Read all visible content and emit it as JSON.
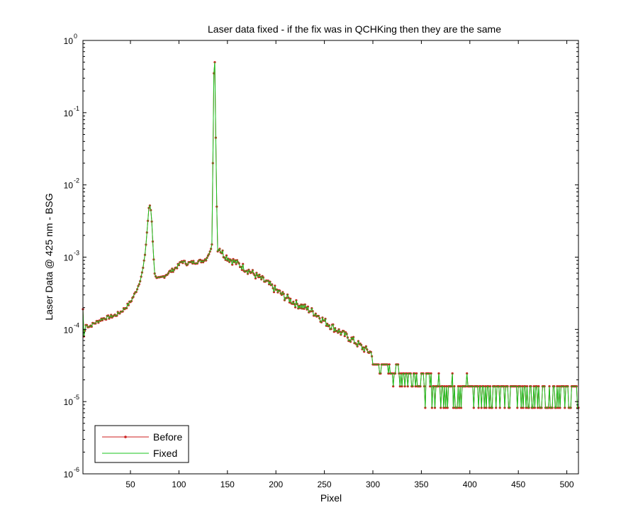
{
  "chart_data": {
    "type": "line",
    "title": "Laser data fixed - if the fix was in QCHKing then they are the same",
    "xlabel": "Pixel",
    "ylabel": "Laser Data @ 425 nm - BSG",
    "xlim": [
      1,
      512
    ],
    "ylim": [
      1e-06,
      1
    ],
    "yscale": "log",
    "grid": false,
    "legend_position": "bottom-left",
    "x_ticks": [
      50,
      100,
      150,
      200,
      250,
      300,
      350,
      400,
      450,
      500
    ],
    "x_tick_labels": [
      "50",
      "100",
      "150",
      "200",
      "250",
      "300",
      "350",
      "400",
      "450",
      "500"
    ],
    "y_ticks": [
      {
        "value": 1e-06,
        "base": "10",
        "exp": "-6"
      },
      {
        "value": 1e-05,
        "base": "10",
        "exp": "-5"
      },
      {
        "value": 0.0001,
        "base": "10",
        "exp": "-4"
      },
      {
        "value": 0.001,
        "base": "10",
        "exp": "-3"
      },
      {
        "value": 0.01,
        "base": "10",
        "exp": "-2"
      },
      {
        "value": 0.1,
        "base": "10",
        "exp": "-1"
      },
      {
        "value": 1,
        "base": "10",
        "exp": "0"
      }
    ],
    "series_style": [
      {
        "name": "Before",
        "color": "#cc1f1f",
        "marker": "dot",
        "line": true
      },
      {
        "name": "Fixed",
        "color": "#18c41e",
        "marker": "none",
        "line": true
      }
    ],
    "keypoints": {
      "x": [
        1,
        2,
        4,
        8,
        12,
        16,
        20,
        25,
        30,
        35,
        40,
        45,
        50,
        55,
        58,
        60,
        62,
        63,
        64,
        65,
        66,
        67,
        68,
        69,
        70,
        71,
        72,
        73,
        74,
        75,
        77,
        80,
        85,
        90,
        95,
        100,
        103,
        108,
        115,
        122,
        125,
        128,
        131,
        133,
        134,
        135,
        136,
        137,
        138,
        139,
        140,
        142,
        146,
        152,
        160,
        170,
        180,
        190,
        200,
        210,
        220,
        230,
        240,
        250,
        260,
        270,
        280,
        290,
        300,
        310,
        320,
        330,
        340,
        350,
        360,
        380,
        400,
        420,
        440,
        460,
        480,
        500,
        512
      ],
      "y": [
        0.00019,
        8e-05,
        0.000115,
        0.00011,
        0.00012,
        0.000128,
        0.000138,
        0.000145,
        0.00015,
        0.000158,
        0.000175,
        0.0002,
        0.00024,
        0.00032,
        0.0004,
        0.00049,
        0.0006,
        0.0007,
        0.00085,
        0.0011,
        0.0015,
        0.0022,
        0.0032,
        0.0046,
        0.0052,
        0.0045,
        0.0032,
        0.0017,
        0.0009,
        0.00062,
        0.0005,
        0.0005,
        0.00055,
        0.00062,
        0.00068,
        0.00078,
        0.00088,
        0.00082,
        0.00085,
        0.00088,
        0.0009,
        0.00095,
        0.0011,
        0.0013,
        0.0015,
        0.02,
        0.35,
        0.5,
        0.045,
        0.005,
        0.0012,
        0.0013,
        0.0011,
        0.00095,
        0.00082,
        0.00068,
        0.00055,
        0.00045,
        0.00035,
        0.00028,
        0.00023,
        0.0002,
        0.00017,
        0.00013,
        0.000105,
        8.5e-05,
        7e-05,
        5.5e-05,
        4.6e-05,
        3.7e-05,
        3e-05,
        2.5e-05,
        2.2e-05,
        2e-05,
        1.8e-05,
        1.6e-05,
        1.5e-05,
        1.4e-05,
        1.35e-05,
        1.3e-05,
        1.25e-05,
        1.2e-05,
        1.2e-05
      ]
    },
    "noise_levels_high_pixels": [
      8.2e-06,
      1.63e-05,
      2.45e-05,
      3.27e-05
    ],
    "point_count": 512
  }
}
